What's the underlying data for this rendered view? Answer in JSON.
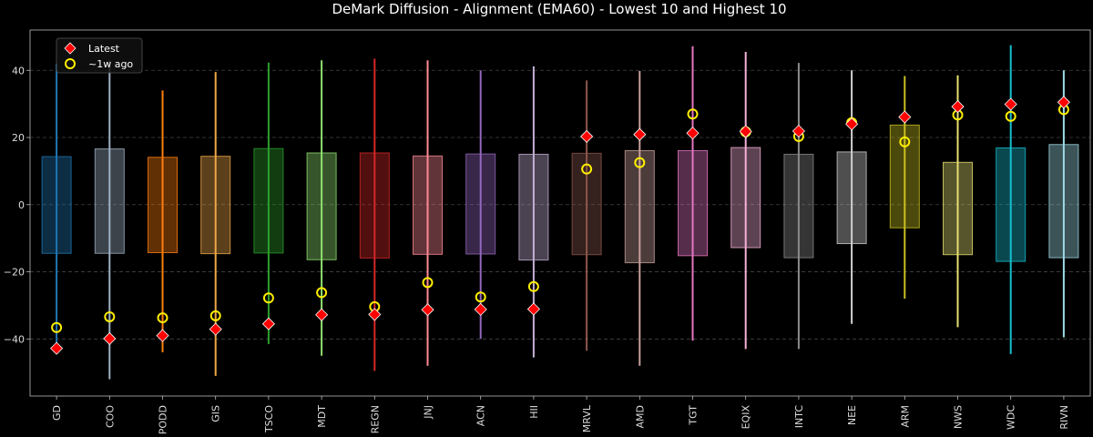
{
  "chart_data": {
    "type": "box-range",
    "title": "DeMark Diffusion - Alignment (EMA60) - Lowest 10 and Highest 10",
    "ylim": [
      -57,
      52
    ],
    "yticks": [
      -40,
      -20,
      0,
      20,
      40
    ],
    "grid": true,
    "legend_placement": "top-left",
    "legend": [
      {
        "label": "Latest",
        "marker": "red-diamond"
      },
      {
        "label": "~1w ago",
        "marker": "yellow-circle"
      }
    ],
    "categories": [
      "GD",
      "COO",
      "PODD",
      "GIS",
      "TSCO",
      "MDT",
      "REGN",
      "JNJ",
      "ACN",
      "HII",
      "MRVL",
      "AMD",
      "TGT",
      "EQIX",
      "INTC",
      "NEE",
      "ARM",
      "NWS",
      "WDC",
      "RIVN"
    ],
    "series": [
      {
        "name": "Latest",
        "values": [
          -42.8,
          -39.9,
          -39.0,
          -37.1,
          -35.5,
          -32.8,
          -32.7,
          -31.3,
          -31.2,
          -31.1,
          20.3,
          20.9,
          21.3,
          21.8,
          21.9,
          24.0,
          26.1,
          29.2,
          29.9,
          30.5
        ]
      },
      {
        "name": "~1w ago",
        "values": [
          -36.6,
          -33.4,
          -33.7,
          -33.1,
          -27.8,
          -26.2,
          -30.4,
          -23.2,
          -27.5,
          -24.4,
          10.6,
          12.5,
          27.0,
          21.7,
          20.3,
          24.4,
          18.7,
          26.7,
          26.3,
          28.3
        ]
      }
    ],
    "box_low": [
      -14.5,
      -14.5,
      -14.3,
      -14.6,
      -14.4,
      -16.4,
      -15.9,
      -14.8,
      -14.7,
      -16.5,
      -14.9,
      -17.3,
      -15.2,
      -12.8,
      -15.8,
      -11.6,
      -6.9,
      -14.9,
      -16.9,
      -15.8
    ],
    "box_high": [
      14.3,
      16.6,
      14.1,
      14.4,
      16.7,
      15.4,
      15.4,
      14.5,
      15.1,
      15.0,
      15.3,
      16.1,
      16.1,
      17.0,
      15.0,
      15.7,
      23.7,
      12.6,
      16.9,
      17.9
    ],
    "whisker_low": [
      -42.5,
      -52.0,
      -44.0,
      -51.0,
      -41.5,
      -45.0,
      -49.5,
      -48.0,
      -40.0,
      -45.5,
      -43.5,
      -48.0,
      -40.5,
      -43.0,
      -43.0,
      -35.5,
      -28.0,
      -36.5,
      -44.5,
      -39.5
    ],
    "whisker_high": [
      42.0,
      43.0,
      34.0,
      39.5,
      42.3,
      43.0,
      43.5,
      43.0,
      40.0,
      41.2,
      37.0,
      39.8,
      47.2,
      45.5,
      42.2,
      40.0,
      38.3,
      38.5,
      47.5,
      40.0
    ],
    "colors": [
      "#1f77b4",
      "#9fb0c4",
      "#ff7f0e",
      "#f0a848",
      "#2ca02c",
      "#90e070",
      "#d62728",
      "#ff8a95",
      "#9467bd",
      "#c5b0d5",
      "#8c564b",
      "#c8a09a",
      "#e377c2",
      "#f5b0d8",
      "#8c8c8c",
      "#d0d0d0",
      "#c8c020",
      "#e6e070",
      "#17becf",
      "#9edae5"
    ]
  }
}
